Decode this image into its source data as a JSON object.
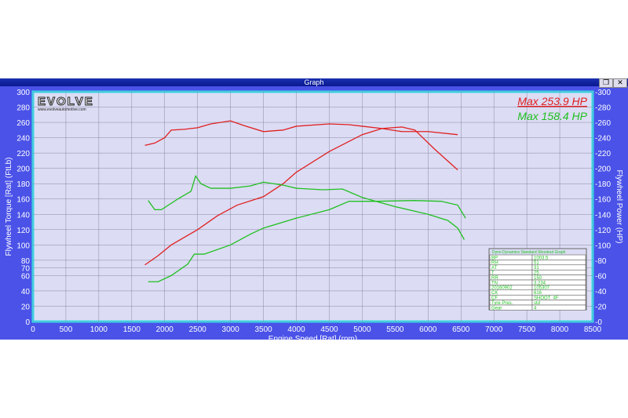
{
  "window": {
    "title": "Graph",
    "restore_icon": "restore-icon",
    "close_icon": "close-icon"
  },
  "logo": {
    "text": "EVOLVE",
    "url_text": "www.evolveautomotive.com"
  },
  "annotations": {
    "max_red": "Max 253.9 HP",
    "max_green": "Max 158.4 HP"
  },
  "colors": {
    "red": "#e02020",
    "green": "#20c020",
    "plot_bg": "#dcdcf4",
    "frame": "#4a52e8",
    "border": "#30e0f0"
  },
  "info_table": {
    "title": "Dyno Dynamics Standard Shootout Graph",
    "rows": [
      [
        "BP",
        "1003.5"
      ],
      [
        "RH",
        "51"
      ],
      [
        "AT",
        "31"
      ],
      [
        "T",
        "25"
      ],
      [
        "RR",
        "150"
      ],
      [
        "TN",
        "3.234"
      ],
      [
        "20160902",
        "105307"
      ],
      [
        "CK",
        "616"
      ],
      [
        "CF",
        "SHOOT_4F"
      ],
      [
        "Tyre Pres.",
        "std"
      ],
      [
        "Gear",
        "4"
      ]
    ]
  },
  "chart_data": {
    "type": "line",
    "xlabel": "Engine Speed [Rat] (rpm)",
    "ylabel": "Flywheel Torque [Rat] (FtLb)",
    "y2label": "Flywheel Power (HP)",
    "xlim": [
      0,
      8500
    ],
    "ylim": [
      0,
      300
    ],
    "y2lim": [
      0,
      300
    ],
    "xticks": [
      0,
      500,
      1000,
      1500,
      2000,
      2500,
      3000,
      3500,
      4000,
      4500,
      5000,
      5500,
      6000,
      6500,
      7000,
      7500,
      8000,
      8500
    ],
    "yticks": [
      0,
      20,
      40,
      60,
      70,
      80,
      100,
      120,
      140,
      160,
      180,
      200,
      220,
      240,
      260,
      280,
      300
    ],
    "y2ticks": [
      0,
      20,
      40,
      60,
      80,
      100,
      120,
      140,
      160,
      180,
      200,
      220,
      240,
      260,
      280,
      300
    ],
    "grid": true,
    "series": [
      {
        "color": "#e02020",
        "points": [
          [
            1700,
            230
          ],
          [
            1850,
            233
          ],
          [
            2000,
            240
          ],
          [
            2100,
            250
          ],
          [
            2300,
            251
          ],
          [
            2500,
            253
          ],
          [
            2700,
            258
          ],
          [
            3000,
            262
          ],
          [
            3200,
            256
          ],
          [
            3500,
            248
          ],
          [
            3800,
            250
          ],
          [
            4000,
            255
          ],
          [
            4500,
            258
          ],
          [
            4800,
            257
          ],
          [
            5000,
            255
          ],
          [
            5300,
            252
          ],
          [
            5600,
            248
          ],
          [
            6000,
            248
          ],
          [
            6450,
            244
          ]
        ]
      },
      {
        "color": "#e02020",
        "points": [
          [
            1700,
            74
          ],
          [
            1900,
            86
          ],
          [
            2100,
            100
          ],
          [
            2500,
            120
          ],
          [
            2800,
            138
          ],
          [
            3100,
            152
          ],
          [
            3500,
            163
          ],
          [
            3800,
            180
          ],
          [
            4000,
            195
          ],
          [
            4500,
            222
          ],
          [
            5000,
            244
          ],
          [
            5300,
            252
          ],
          [
            5600,
            254
          ],
          [
            5800,
            250
          ],
          [
            6100,
            225
          ],
          [
            6450,
            198
          ]
        ]
      },
      {
        "color": "#20c020",
        "points": [
          [
            1750,
            158
          ],
          [
            1850,
            146
          ],
          [
            1950,
            146
          ],
          [
            2200,
            160
          ],
          [
            2400,
            170
          ],
          [
            2470,
            190
          ],
          [
            2550,
            180
          ],
          [
            2700,
            174
          ],
          [
            3000,
            174
          ],
          [
            3300,
            177
          ],
          [
            3500,
            182
          ],
          [
            3800,
            178
          ],
          [
            4000,
            174
          ],
          [
            4400,
            172
          ],
          [
            4700,
            173
          ],
          [
            5000,
            162
          ],
          [
            5500,
            150
          ],
          [
            6000,
            140
          ],
          [
            6300,
            132
          ],
          [
            6450,
            122
          ],
          [
            6550,
            107
          ]
        ]
      },
      {
        "color": "#20c020",
        "points": [
          [
            1750,
            52
          ],
          [
            1900,
            52
          ],
          [
            2100,
            60
          ],
          [
            2350,
            75
          ],
          [
            2450,
            88
          ],
          [
            2600,
            88
          ],
          [
            3000,
            100
          ],
          [
            3300,
            114
          ],
          [
            3500,
            122
          ],
          [
            4000,
            135
          ],
          [
            4500,
            146
          ],
          [
            4800,
            157
          ],
          [
            5200,
            157
          ],
          [
            5800,
            158
          ],
          [
            6200,
            157
          ],
          [
            6450,
            152
          ],
          [
            6570,
            135
          ]
        ]
      }
    ]
  }
}
